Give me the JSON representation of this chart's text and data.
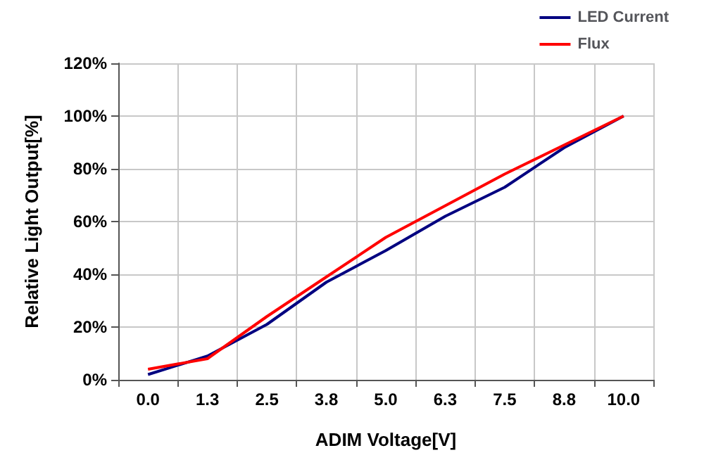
{
  "chart_data": {
    "type": "line",
    "xlabel": "ADIM Voltage[V]",
    "ylabel": "Relative Light Output[%]",
    "categories": [
      "0.0",
      "1.3",
      "2.5",
      "3.8",
      "5.0",
      "6.3",
      "7.5",
      "8.8",
      "10.0"
    ],
    "series": [
      {
        "name": "LED Current",
        "color": "#000080",
        "values": [
          2,
          9,
          21,
          37,
          49,
          62,
          73,
          88,
          100
        ]
      },
      {
        "name": "Flux",
        "color": "#ff0000",
        "values": [
          4,
          8,
          24,
          39,
          54,
          66,
          78,
          89,
          100
        ]
      }
    ],
    "ylim": [
      0,
      120
    ],
    "yticks": [
      {
        "value": 0,
        "label": "0%"
      },
      {
        "value": 20,
        "label": "20%"
      },
      {
        "value": 40,
        "label": "40%"
      },
      {
        "value": 60,
        "label": "60%"
      },
      {
        "value": 80,
        "label": "80%"
      },
      {
        "value": 100,
        "label": "100%"
      },
      {
        "value": 120,
        "label": "120%"
      }
    ],
    "grid": true,
    "legend": "top right",
    "marker": "none",
    "line_style": "solid"
  }
}
